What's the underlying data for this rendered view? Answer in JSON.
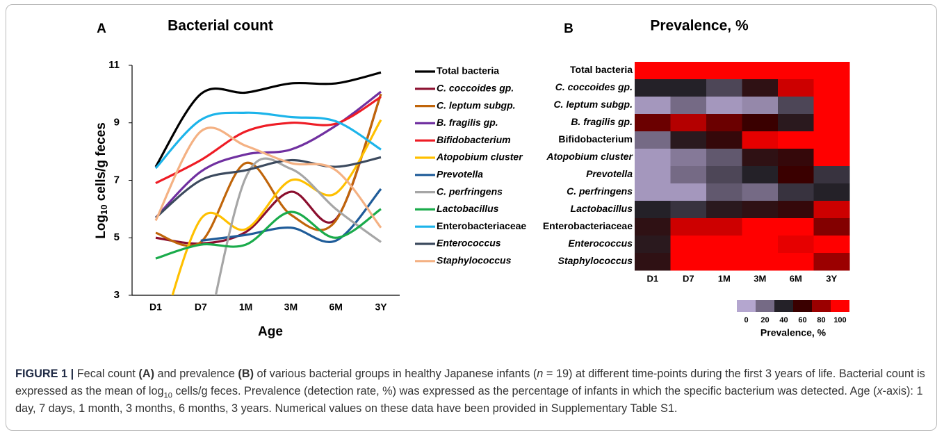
{
  "chart_data": [
    {
      "type": "line",
      "panel": "A",
      "title": "Bacterial count",
      "ylabel": {
        "base": "Log",
        "sub": "10",
        "rest": " cells/g feces"
      },
      "xlabel": "Age",
      "categories": [
        "D1",
        "D7",
        "1M",
        "3M",
        "6M",
        "3Y"
      ],
      "ylim": [
        3,
        11
      ],
      "yticks": [
        3,
        5,
        7,
        9,
        11
      ],
      "series": [
        {
          "name": "Total bacteria",
          "italic": false,
          "color": "#000000",
          "values": [
            7.47,
            10.0,
            10.05,
            10.37,
            10.37,
            10.75
          ]
        },
        {
          "name": "C. coccoides gp.",
          "italic": true,
          "color": "#8b0e2e",
          "values": [
            5.0,
            4.8,
            5.2,
            6.6,
            5.65,
            10.0
          ]
        },
        {
          "name": "C. leptum subgp.",
          "italic": true,
          "color": "#c0650a",
          "values": [
            5.17,
            4.85,
            7.6,
            5.8,
            5.6,
            10.0
          ]
        },
        {
          "name": "B. fragilis gp.",
          "italic": true,
          "color": "#7030a0",
          "values": [
            5.7,
            7.3,
            7.9,
            8.07,
            8.9,
            10.08
          ]
        },
        {
          "name": "Bifidobacterium",
          "italic": true,
          "color": "#ee1c25",
          "values": [
            6.9,
            7.7,
            8.7,
            9.0,
            8.97,
            9.9
          ]
        },
        {
          "name": "Atopobium cluster",
          "italic": true,
          "color": "#ffc000",
          "values": [
            1.0,
            5.65,
            5.3,
            7.0,
            6.55,
            9.1
          ]
        },
        {
          "name": "Prevotella",
          "italic": true,
          "color": "#1f5c99",
          "values": [
            null,
            4.9,
            5.1,
            5.35,
            4.9,
            6.7
          ]
        },
        {
          "name": "C. perfringens",
          "italic": true,
          "color": "#a6a6a6",
          "values": [
            null,
            0.5,
            7.1,
            7.4,
            6.0,
            4.85
          ]
        },
        {
          "name": "Lactobacillus",
          "italic": true,
          "color": "#1aab4b",
          "values": [
            4.28,
            4.76,
            4.76,
            5.9,
            5.0,
            6.0
          ]
        },
        {
          "name": "Enterobacteriaceae",
          "italic": false,
          "color": "#1cb4ea",
          "values": [
            7.42,
            9.1,
            9.35,
            9.2,
            9.05,
            8.07
          ]
        },
        {
          "name": "Enterococcus",
          "italic": true,
          "color": "#3c4a5e",
          "values": [
            5.7,
            7.0,
            7.35,
            7.7,
            7.47,
            7.8
          ]
        },
        {
          "name": "Staphylococcus",
          "italic": true,
          "color": "#f4b183",
          "values": [
            5.6,
            8.7,
            8.2,
            7.6,
            7.35,
            5.35
          ]
        }
      ]
    },
    {
      "type": "heatmap",
      "panel": "B",
      "title": "Prevalence, %",
      "columns": [
        "D1",
        "D7",
        "1M",
        "3M",
        "6M",
        "3Y"
      ],
      "rows": [
        "Total bacteria",
        "C. coccoides gp.",
        "C. leptum subgp.",
        "B. fragilis gp.",
        "Bifidobacterium",
        "Atopobium cluster",
        "Prevotella",
        "C. perfringens",
        "Lactobacillus",
        "Enterobacteriaceae",
        "Enterococcus",
        "Staphylococcus"
      ],
      "row_italic": [
        false,
        true,
        true,
        true,
        false,
        true,
        true,
        true,
        true,
        false,
        true,
        true
      ],
      "values": [
        [
          100,
          100,
          100,
          100,
          100,
          100
        ],
        [
          40,
          40,
          30,
          50,
          90,
          100
        ],
        [
          5,
          20,
          5,
          10,
          30,
          100
        ],
        [
          70,
          85,
          70,
          60,
          45,
          100
        ],
        [
          20,
          45,
          55,
          95,
          100,
          100
        ],
        [
          5,
          15,
          25,
          50,
          55,
          100
        ],
        [
          5,
          20,
          30,
          40,
          60,
          35
        ],
        [
          5,
          5,
          25,
          20,
          35,
          40
        ],
        [
          40,
          35,
          45,
          50,
          55,
          90
        ],
        [
          50,
          90,
          90,
          100,
          100,
          75
        ],
        [
          45,
          100,
          100,
          100,
          95,
          100
        ],
        [
          50,
          100,
          100,
          100,
          100,
          80
        ]
      ],
      "colorbar_ticks": [
        0,
        20,
        40,
        60,
        80,
        100
      ],
      "colors": [
        "#b4a6cf",
        "#756a85",
        "#242128",
        "#3a0000",
        "#9b0000",
        "#ff0000"
      ],
      "colorbar_label": "Prevalence, %"
    }
  ],
  "caption": [
    {
      "text": "FIGURE 1 | ",
      "style": "bold"
    },
    {
      "text": "Fecal count "
    },
    {
      "text": "(A)",
      "style": "bold"
    },
    {
      "text": " and prevalence "
    },
    {
      "text": "(B)",
      "style": "bold"
    },
    {
      "text": " of various bacterial groups in healthy Japanese infants ("
    },
    {
      "text": "n",
      "style": "italic"
    },
    {
      "text": " = 19) at different time-points during the first 3 years of life. Bacterial count is expressed as the mean of log"
    },
    {
      "text": "10",
      "style": "sub"
    },
    {
      "text": " cells/g feces. Prevalence (detection rate, %) was expressed as the percentage of infants in which the specific bacterium was detected. Age ("
    },
    {
      "text": "x",
      "style": "italic"
    },
    {
      "text": "-axis): 1 day, 7 days, 1 month, 3 months, 6 months, 3 years. Numerical values on these data have been provided in Supplementary Table S1."
    }
  ]
}
